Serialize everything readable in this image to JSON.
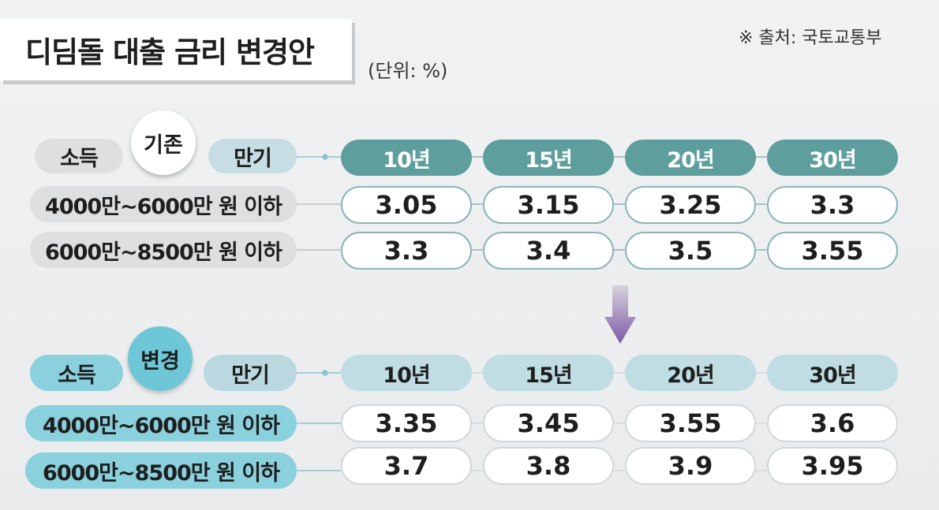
{
  "title": "디딤돌 대출 금리 변경안",
  "unit": "(단위: %)",
  "source": "※ 출처: 국토교통부",
  "labels": {
    "income": "소득",
    "term": "만기"
  },
  "colors": {
    "old_header": "#5e9f9d",
    "new_header": "#c0dde3",
    "new_badge": "#6ec7d6",
    "arrow": "#7e5aa6"
  },
  "chart_data": [
    {
      "type": "table",
      "title": "기존",
      "columns": [
        "10년",
        "15년",
        "20년",
        "30년"
      ],
      "rows": [
        {
          "label": "4000만~6000만 원 이하",
          "values": [
            "3.05",
            "3.15",
            "3.25",
            "3.3"
          ]
        },
        {
          "label": "6000만~8500만 원 이하",
          "values": [
            "3.3",
            "3.4",
            "3.5",
            "3.55"
          ]
        }
      ]
    },
    {
      "type": "table",
      "title": "변경",
      "columns": [
        "10년",
        "15년",
        "20년",
        "30년"
      ],
      "rows": [
        {
          "label": "4000만~6000만 원 이하",
          "values": [
            "3.35",
            "3.45",
            "3.55",
            "3.6"
          ]
        },
        {
          "label": "6000만~8500만 원 이하",
          "values": [
            "3.7",
            "3.8",
            "3.9",
            "3.95"
          ]
        }
      ]
    }
  ]
}
